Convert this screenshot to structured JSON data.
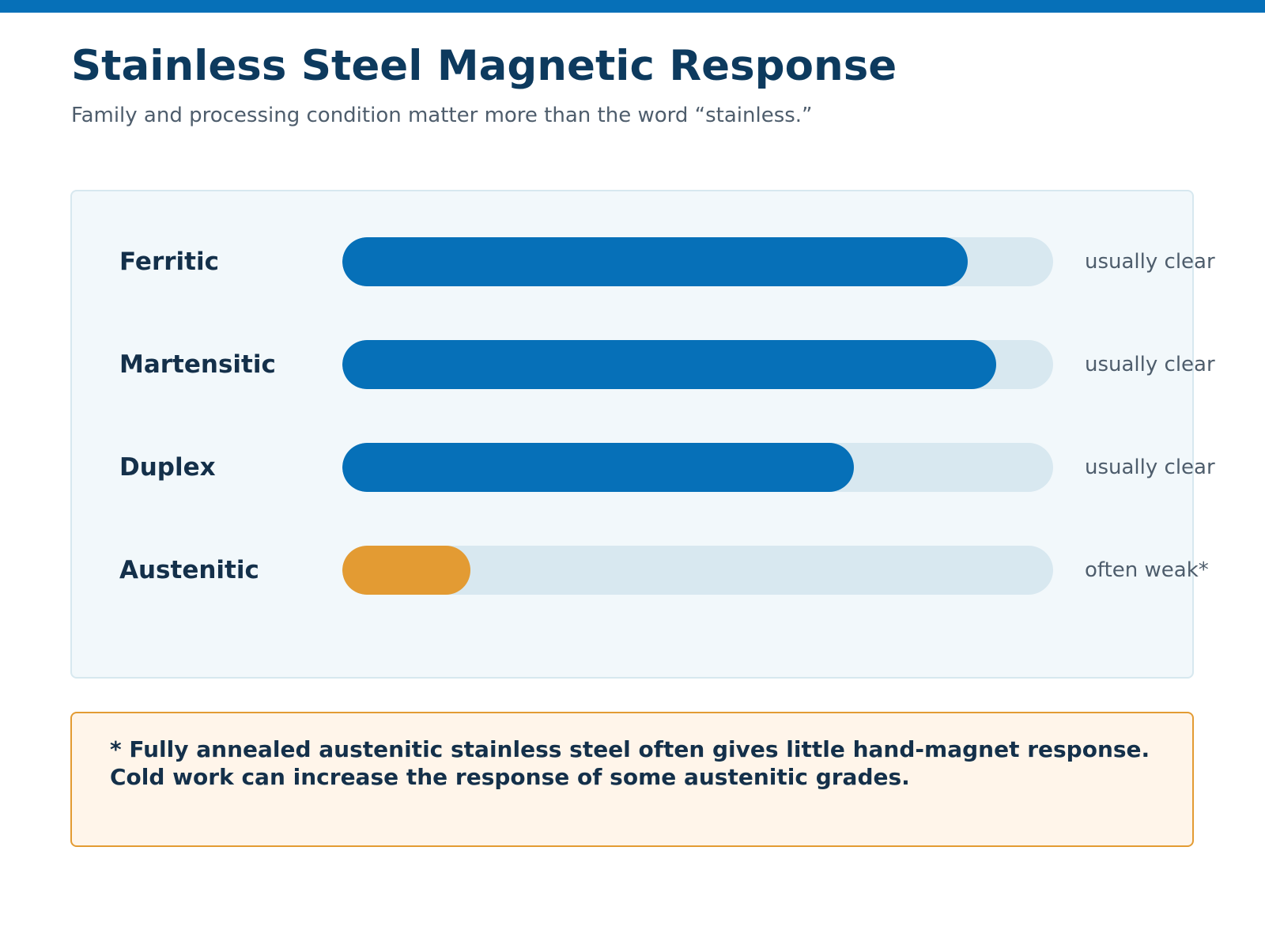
{
  "header": {
    "title": "Stainless Steel Magnetic Response",
    "subtitle": "Family and processing condition matter more than the word “stainless.”"
  },
  "colors": {
    "accent": "#0670b8",
    "highlight": "#e39b33",
    "track": "#d8e8f0"
  },
  "chart_data": {
    "type": "bar",
    "orientation": "horizontal",
    "categories": [
      "Ferritic",
      "Martensitic",
      "Duplex",
      "Austenitic"
    ],
    "values": [
      0.88,
      0.92,
      0.72,
      0.18
    ],
    "status_labels": [
      "usually clear",
      "usually clear",
      "usually clear",
      "often weak*"
    ],
    "bar_colors": [
      "#0670b8",
      "#0670b8",
      "#0670b8",
      "#e39b33"
    ],
    "title": "",
    "xlabel": "",
    "ylabel": "",
    "xlim": [
      0,
      1
    ],
    "grid": false,
    "legend": "none"
  },
  "note": {
    "lines": [
      "* Fully annealed austenitic stainless steel often gives little hand-magnet response.",
      "Cold work can increase the response of some austenitic grades."
    ]
  }
}
